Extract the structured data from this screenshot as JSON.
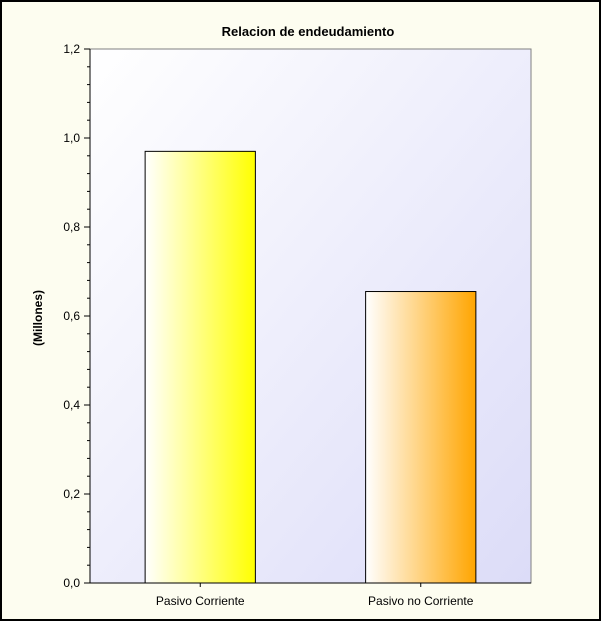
{
  "chart_data": {
    "type": "bar",
    "title": "Relacion de endeudamiento",
    "xlabel": "",
    "ylabel": "(Millones)",
    "categories": [
      "Pasivo Corriente",
      "Pasivo no Corriente"
    ],
    "values": [
      0.97,
      0.655
    ],
    "ylim": [
      0,
      1.2
    ],
    "yticks": [
      0.0,
      0.2,
      0.4,
      0.6,
      0.8,
      1.0,
      1.2
    ],
    "ytick_labels": [
      "0,0",
      "0,2",
      "0,4",
      "0,6",
      "0,8",
      "1,0",
      "1,2"
    ],
    "grid": false,
    "legend": "none",
    "bar_colors": [
      "#ffff00",
      "#ffa500"
    ],
    "plot_background": [
      "#ffffff",
      "#dcdcf8"
    ]
  }
}
